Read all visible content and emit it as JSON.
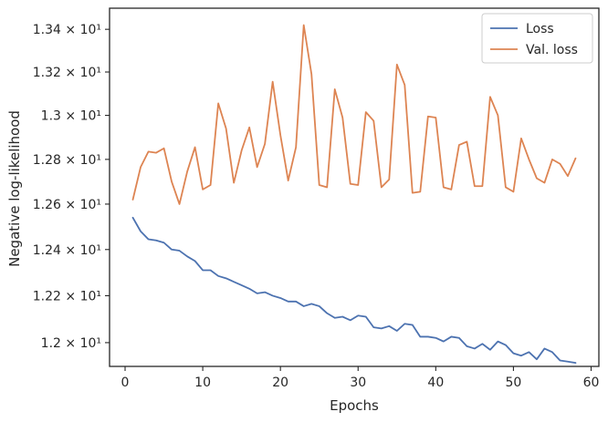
{
  "chart_data": {
    "type": "line",
    "title": "",
    "xlabel": "Epochs",
    "ylabel": "Negative log-likelihood",
    "xlim": [
      -2,
      61
    ],
    "ylim": [
      11.9,
      13.5
    ],
    "y_scale": "log",
    "xticks": [
      0,
      10,
      20,
      30,
      40,
      50,
      60
    ],
    "xtick_labels": [
      "0",
      "10",
      "20",
      "30",
      "40",
      "50",
      "60"
    ],
    "yticks": [
      12.0,
      12.2,
      12.4,
      12.6,
      12.8,
      13.0,
      13.2,
      13.4
    ],
    "ytick_labels": [
      "1.2 × 10¹",
      "1.22 × 10¹",
      "1.24 × 10¹",
      "1.26 × 10¹",
      "1.28 × 10¹",
      "1.3 × 10¹",
      "1.32 × 10¹",
      "1.34 × 10¹"
    ],
    "grid": false,
    "legend_position": "top-right",
    "x": [
      1,
      2,
      3,
      4,
      5,
      6,
      7,
      8,
      9,
      10,
      11,
      12,
      13,
      14,
      15,
      16,
      17,
      18,
      19,
      20,
      21,
      22,
      23,
      24,
      25,
      26,
      27,
      28,
      29,
      30,
      31,
      32,
      33,
      34,
      35,
      36,
      37,
      38,
      39,
      40,
      41,
      42,
      43,
      44,
      45,
      46,
      47,
      48,
      49,
      50,
      51,
      52,
      53,
      54,
      55,
      56,
      57,
      58
    ],
    "series": [
      {
        "name": "Loss",
        "color": "#4c72b0",
        "values": [
          12.54,
          12.48,
          12.445,
          12.44,
          12.43,
          12.4,
          12.395,
          12.37,
          12.35,
          12.31,
          12.31,
          12.285,
          12.275,
          12.26,
          12.245,
          12.23,
          12.21,
          12.215,
          12.2,
          12.19,
          12.175,
          12.175,
          12.155,
          12.165,
          12.155,
          12.125,
          12.105,
          12.11,
          12.095,
          12.115,
          12.11,
          12.065,
          12.06,
          12.07,
          12.05,
          12.08,
          12.075,
          12.025,
          12.025,
          12.02,
          12.005,
          12.025,
          12.02,
          11.985,
          11.975,
          11.995,
          11.97,
          12.005,
          11.99,
          11.955,
          11.945,
          11.96,
          11.93,
          11.975,
          11.96,
          11.925,
          11.92,
          11.915
        ]
      },
      {
        "name": "Val. loss",
        "color": "#dd8452",
        "values": [
          12.62,
          12.765,
          12.835,
          12.83,
          12.85,
          12.7,
          12.6,
          12.745,
          12.855,
          12.665,
          12.685,
          13.055,
          12.94,
          12.695,
          12.84,
          12.945,
          12.765,
          12.87,
          13.155,
          12.91,
          12.705,
          12.855,
          13.42,
          13.19,
          12.685,
          12.675,
          13.12,
          12.99,
          12.69,
          12.685,
          13.015,
          12.975,
          12.675,
          12.71,
          13.235,
          13.14,
          12.65,
          12.655,
          12.995,
          12.99,
          12.675,
          12.665,
          12.865,
          12.88,
          12.68,
          12.68,
          13.085,
          13.0,
          12.675,
          12.655,
          12.895,
          12.8,
          12.715,
          12.695,
          12.8,
          12.78,
          12.725,
          12.805
        ]
      }
    ]
  }
}
